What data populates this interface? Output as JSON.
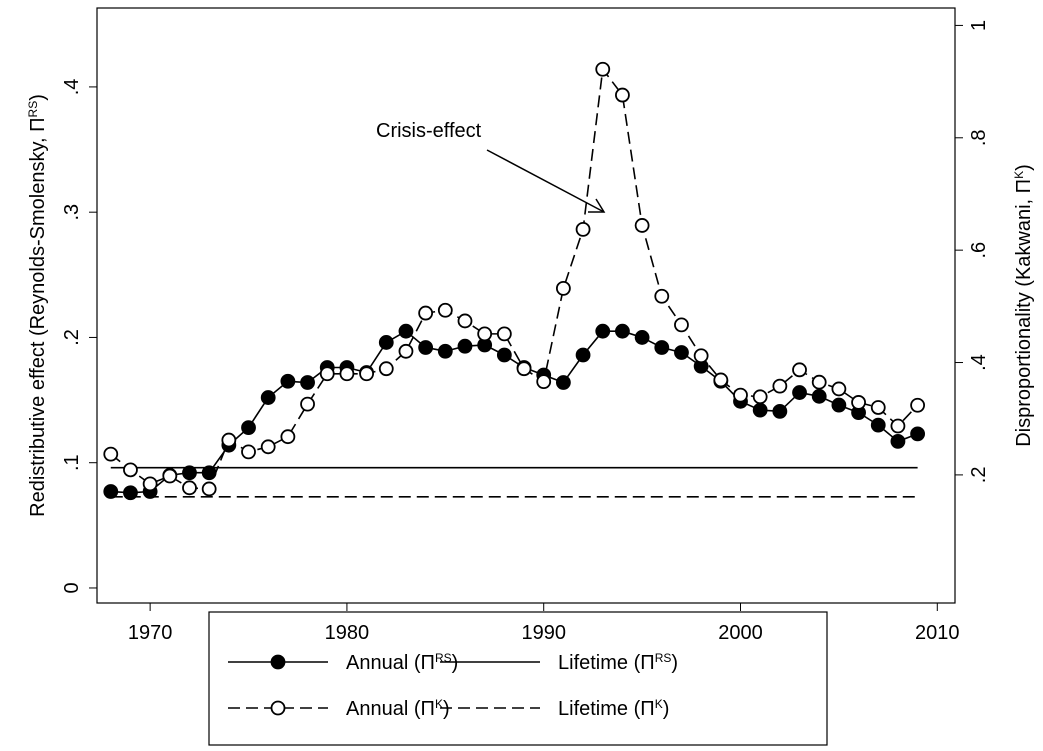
{
  "chart_data": {
    "type": "line",
    "ylabel": "Redistributive effect (Reynolds-Smolensky, ΠRS)",
    "y2label": "Disproportionality (Kakwani, ΠK)",
    "annotation": "Crisis-effect",
    "x": [
      1968,
      1969,
      1970,
      1971,
      1972,
      1973,
      1974,
      1975,
      1976,
      1977,
      1978,
      1979,
      1980,
      1981,
      1982,
      1983,
      1984,
      1985,
      1986,
      1987,
      1988,
      1989,
      1990,
      1991,
      1992,
      1993,
      1994,
      1995,
      1996,
      1997,
      1998,
      1999,
      2000,
      2001,
      2002,
      2003,
      2004,
      2005,
      2006,
      2007,
      2008,
      2009
    ],
    "xlim": [
      1967.3,
      2010.9
    ],
    "xticks": [
      1970,
      1980,
      1990,
      2000,
      2010
    ],
    "ylim": [
      -0.012,
      0.463
    ],
    "yticks": [
      0,
      {
        "value": 0.1,
        "label": ".1"
      },
      {
        "value": 0.2,
        "label": ".2"
      },
      {
        "value": 0.3,
        "label": ".3"
      },
      {
        "value": 0.4,
        "label": ".4"
      }
    ],
    "y2lim": [
      -0.028,
      1.031
    ],
    "y2ticks": [
      {
        "value": 0.2,
        "label": ".2"
      },
      {
        "value": 0.4,
        "label": ".4"
      },
      {
        "value": 0.6,
        "label": ".6"
      },
      {
        "value": 0.8,
        "label": ".8"
      },
      1
    ],
    "series": [
      {
        "name": "Annual (ΠRS)",
        "color": "#000000",
        "marker": "filled",
        "dash": false,
        "values": [
          0.077,
          0.076,
          0.077,
          0.09,
          0.092,
          0.092,
          0.114,
          0.128,
          0.152,
          0.165,
          0.164,
          0.176,
          0.176,
          0.172,
          0.196,
          0.205,
          0.192,
          0.189,
          0.193,
          0.194,
          0.186,
          0.176,
          0.17,
          0.164,
          0.186,
          0.205,
          0.205,
          0.2,
          0.192,
          0.188,
          0.177,
          0.165,
          0.149,
          0.142,
          0.141,
          0.156,
          0.153,
          0.146,
          0.14,
          0.13,
          0.117,
          0.123
        ]
      },
      {
        "name": "Lifetime (ΠRS)",
        "color": "#000000",
        "dash": false,
        "x": [
          1968,
          2009
        ],
        "values": [
          0.096,
          0.096
        ]
      },
      {
        "name": "Annual (ΠK)",
        "color": "#000000",
        "marker": "hollow",
        "dash": true,
        "axis": "y2",
        "values": [
          0.237,
          0.209,
          0.184,
          0.198,
          0.177,
          0.175,
          0.262,
          0.241,
          0.25,
          0.268,
          0.326,
          0.38,
          0.38,
          0.38,
          0.389,
          0.42,
          0.488,
          0.493,
          0.474,
          0.451,
          0.451,
          0.389,
          0.366,
          0.532,
          0.637,
          0.922,
          0.876,
          0.644,
          0.518,
          0.467,
          0.412,
          0.369,
          0.342,
          0.339,
          0.358,
          0.387,
          0.365,
          0.353,
          0.329,
          0.32,
          0.287,
          0.324
        ]
      },
      {
        "name": "Lifetime (ΠK)",
        "color": "#000000",
        "dash": true,
        "axis": "y2",
        "x": [
          1968,
          2009
        ],
        "values": [
          0.161,
          0.161
        ]
      }
    ]
  }
}
